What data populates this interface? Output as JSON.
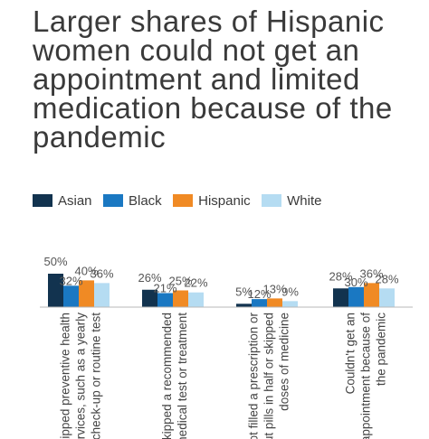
{
  "chart_data": {
    "type": "bar",
    "title": "Larger shares of Hispanic women could not get an appointment and limited medication because of the pandemic",
    "categories": [
      "Skipped preventive health services, such as a yearly check-up or routine test",
      "Skipped a recommended medical test or treatment",
      "Not filled a prescription or cut pills in half or skipped doses of medicine",
      "Couldn't get an appointment because of the pandemic"
    ],
    "category_lines": [
      [
        "Skipped preventive health",
        "services, such as a yearly",
        "check-up or routine test"
      ],
      [
        "Skipped a recommended",
        "medical test or treatment"
      ],
      [
        "Not filled a prescription or",
        "cut pills in half or skipped",
        "doses of medicine"
      ],
      [
        "Couldn't get an",
        "appointment because of",
        "the pandemic"
      ]
    ],
    "series": [
      {
        "name": "Asian",
        "color": "#12334f",
        "values": [
          50,
          26,
          5,
          28
        ]
      },
      {
        "name": "Black",
        "color": "#1a78c2",
        "values": [
          32,
          21,
          12,
          30
        ]
      },
      {
        "name": "Hispanic",
        "color": "#f08a24",
        "values": [
          40,
          25,
          13,
          36
        ]
      },
      {
        "name": "White",
        "color": "#b5dcf2",
        "values": [
          36,
          22,
          9,
          28
        ]
      }
    ],
    "value_labels": [
      [
        "50%",
        "26%",
        "5%",
        "28%"
      ],
      [
        "32%",
        "21%",
        "12%",
        "30%"
      ],
      [
        "40%",
        "25%",
        "13%",
        "36%"
      ],
      [
        "36%",
        "22%",
        "9%",
        "28%"
      ]
    ],
    "legend_position": "top-left",
    "grid": false,
    "ylim": [
      0,
      100
    ]
  }
}
